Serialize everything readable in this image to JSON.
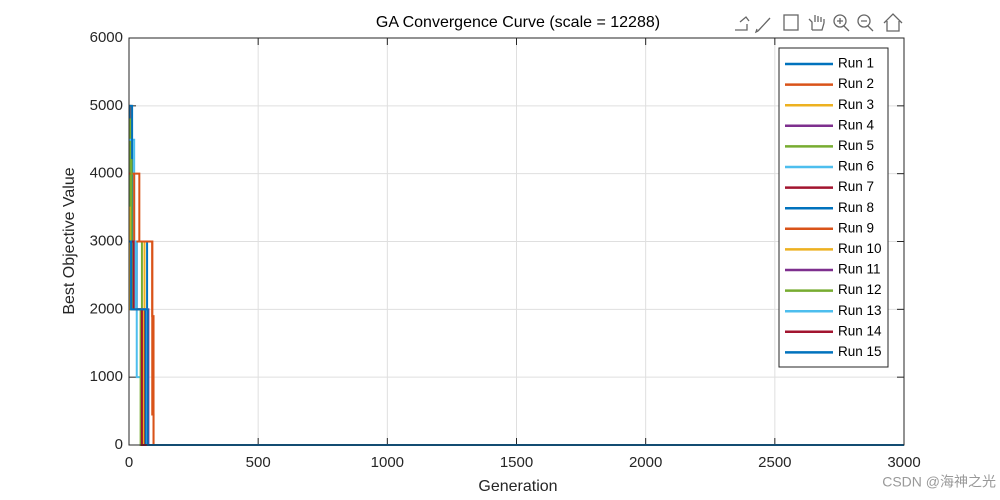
{
  "chart_data": {
    "type": "line",
    "title": "GA Convergence Curve (scale = 12288)",
    "xlabel": "Generation",
    "ylabel": "Best Objective Value",
    "xlim": [
      0,
      3000
    ],
    "xticks": [
      0,
      500,
      1000,
      1500,
      2000,
      2500,
      3000
    ],
    "ylim": [
      0,
      6000
    ],
    "yticks": [
      0,
      1000,
      2000,
      3000,
      4000,
      5000,
      6000
    ],
    "grid": true,
    "legend": "northeast",
    "series": [
      {
        "name": "Run 1",
        "color": "#0072BD",
        "x": [
          0,
          5,
          5,
          70,
          70,
          3000
        ],
        "values": [
          5000,
          5000,
          3000,
          3000,
          0,
          0
        ]
      },
      {
        "name": "Run 2",
        "color": "#D95319",
        "x": [
          0,
          10,
          10,
          40,
          40,
          90,
          90,
          95,
          95,
          3000
        ],
        "values": [
          5000,
          5000,
          4000,
          4000,
          3000,
          3000,
          1900,
          1900,
          0,
          0
        ]
      },
      {
        "name": "Run 3",
        "color": "#EDB120",
        "x": [
          0,
          8,
          8,
          60,
          60,
          3000
        ],
        "values": [
          4000,
          4000,
          3000,
          3000,
          0,
          0
        ]
      },
      {
        "name": "Run 4",
        "color": "#7E2F8E",
        "x": [
          0,
          30,
          30,
          75,
          75,
          3000
        ],
        "values": [
          3000,
          3000,
          2000,
          2000,
          0,
          0
        ]
      },
      {
        "name": "Run 5",
        "color": "#77AC30",
        "x": [
          0,
          5,
          5,
          50,
          50,
          3000
        ],
        "values": [
          4800,
          4800,
          3000,
          3000,
          0,
          0
        ]
      },
      {
        "name": "Run 6",
        "color": "#4DBEEE",
        "x": [
          0,
          20,
          20,
          30,
          30,
          70,
          70,
          3000
        ],
        "values": [
          4500,
          4500,
          3000,
          3000,
          1000,
          1000,
          0,
          0
        ]
      },
      {
        "name": "Run 7",
        "color": "#A2142F",
        "x": [
          0,
          15,
          15,
          60,
          60,
          3000
        ],
        "values": [
          3000,
          3000,
          2000,
          2000,
          0,
          0
        ]
      },
      {
        "name": "Run 8",
        "color": "#0072BD",
        "x": [
          0,
          12,
          12,
          65,
          65,
          3000
        ],
        "values": [
          5000,
          5000,
          2000,
          2000,
          0,
          0
        ]
      },
      {
        "name": "Run 9",
        "color": "#D95319",
        "x": [
          0,
          20,
          20,
          90,
          90,
          95,
          95,
          3000
        ],
        "values": [
          4000,
          4000,
          3000,
          3000,
          450,
          450,
          0,
          0
        ]
      },
      {
        "name": "Run 10",
        "color": "#EDB120",
        "x": [
          0,
          6,
          6,
          55,
          55,
          3000
        ],
        "values": [
          3500,
          3500,
          2000,
          2000,
          0,
          0
        ]
      },
      {
        "name": "Run 11",
        "color": "#7E2F8E",
        "x": [
          0,
          25,
          25,
          70,
          70,
          3000
        ],
        "values": [
          3000,
          3000,
          2000,
          2000,
          0,
          0
        ]
      },
      {
        "name": "Run 12",
        "color": "#77AC30",
        "x": [
          0,
          10,
          10,
          45,
          45,
          3000
        ],
        "values": [
          4200,
          4200,
          2000,
          2000,
          0,
          0
        ]
      },
      {
        "name": "Run 13",
        "color": "#4DBEEE",
        "x": [
          0,
          25,
          25,
          70,
          70,
          3000
        ],
        "values": [
          3000,
          3000,
          2000,
          2000,
          0,
          0
        ]
      },
      {
        "name": "Run 14",
        "color": "#A2142F",
        "x": [
          0,
          18,
          18,
          50,
          50,
          3000
        ],
        "values": [
          3000,
          3000,
          2000,
          2000,
          0,
          0
        ]
      },
      {
        "name": "Run 15",
        "color": "#0072BD",
        "x": [
          0,
          8,
          8,
          72,
          72,
          3000
        ],
        "values": [
          3000,
          3000,
          2000,
          2000,
          0,
          0
        ]
      }
    ]
  },
  "watermark": "CSDN @海神之光"
}
